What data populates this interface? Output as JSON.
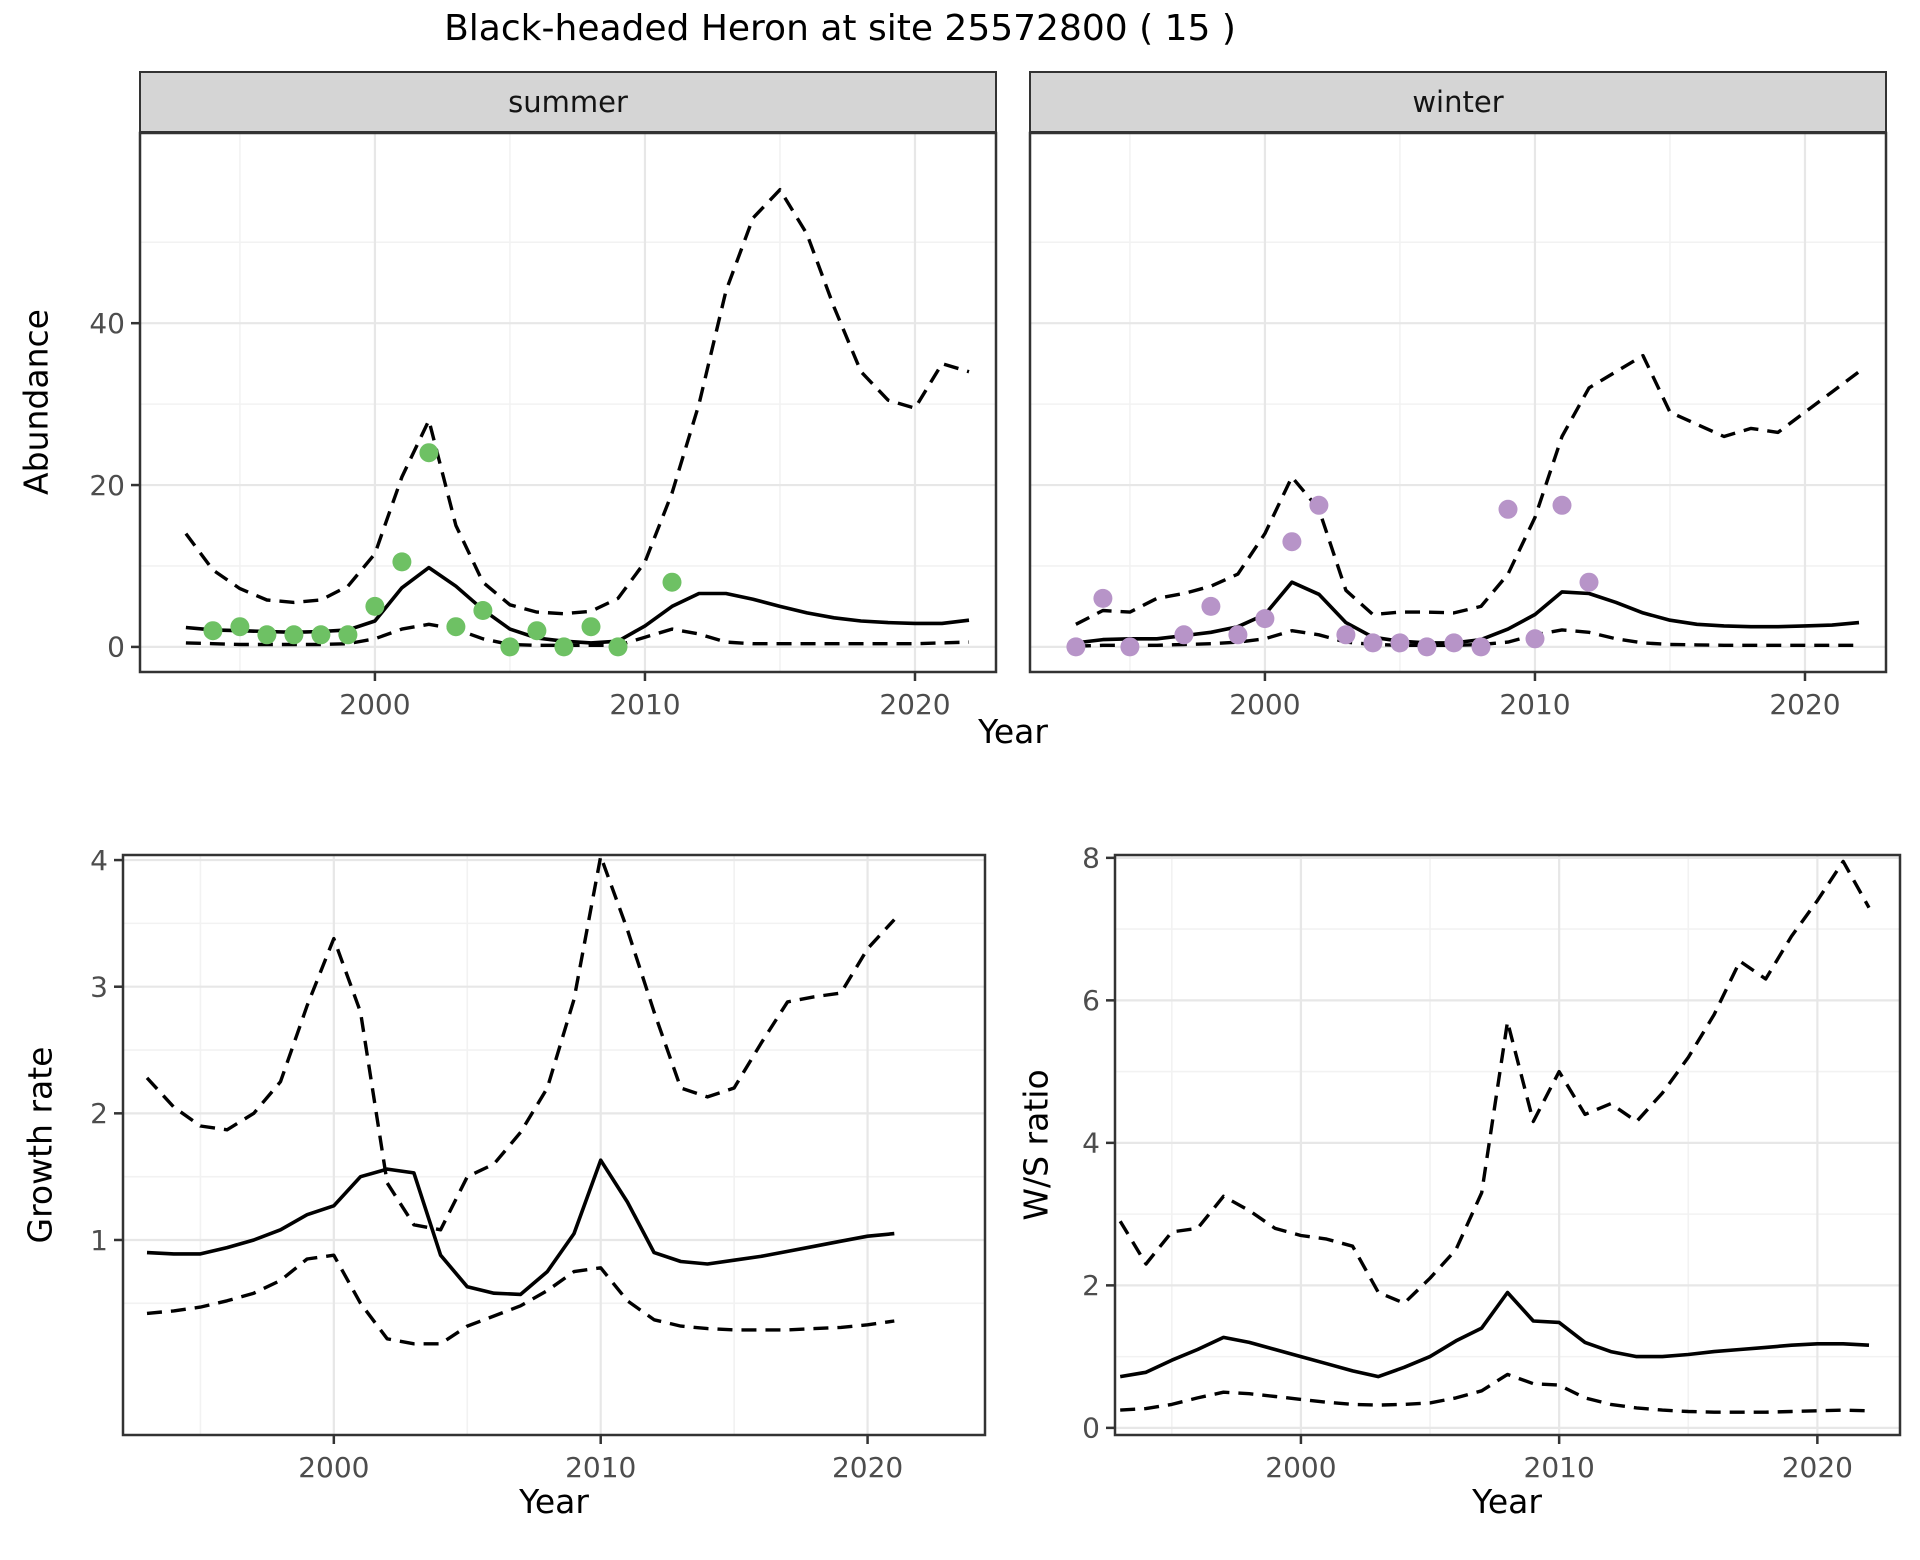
{
  "title": "Black-headed Heron at site 25572800 ( 15 )",
  "shared_x_label": "Year",
  "colors": {
    "line": "#000000",
    "summer_point": "#6ec164",
    "winter_point": "#b794c8",
    "strip_bg": "#d5d5d5",
    "strip_border": "#333333",
    "panel_border": "#333333",
    "grid_major": "#e7e7e7",
    "grid_minor": "#f2f2f2",
    "tick_label": "#4d4d4d",
    "text": "#000000"
  },
  "chart_data": [
    {
      "id": "summer",
      "type": "line",
      "facet_label": "summer",
      "xlabel": "Year",
      "ylabel": "Abundance",
      "xlim": [
        1991.3,
        2023.0
      ],
      "ylim": [
        -3.1,
        63.5
      ],
      "xticks": [
        2000,
        2010,
        2020
      ],
      "xticks_minor": [
        1995,
        2005,
        2015
      ],
      "yticks": [
        0,
        20,
        40
      ],
      "yticks_minor": [
        10,
        30,
        50
      ],
      "legend": "none",
      "series": [
        {
          "name": "median",
          "kind": "line",
          "dash": false,
          "x": [
            1993,
            1994,
            1995,
            1996,
            1997,
            1998,
            1999,
            2000,
            2001,
            2002,
            2003,
            2004,
            2005,
            2006,
            2007,
            2008,
            2009,
            2010,
            2011,
            2012,
            2013,
            2014,
            2015,
            2016,
            2017,
            2018,
            2019,
            2020,
            2021,
            2022
          ],
          "y": [
            2.4,
            2.1,
            2.0,
            1.9,
            1.8,
            1.9,
            2.1,
            3.2,
            7.3,
            9.8,
            7.5,
            4.6,
            2.2,
            1.1,
            0.7,
            0.5,
            0.7,
            2.6,
            5.0,
            6.6,
            6.6,
            5.9,
            5.0,
            4.2,
            3.6,
            3.2,
            3.0,
            2.9,
            2.9,
            3.3
          ]
        },
        {
          "name": "upper-ci",
          "kind": "line",
          "dash": true,
          "x": [
            1993,
            1994,
            1995,
            1996,
            1997,
            1998,
            1999,
            2000,
            2001,
            2002,
            2003,
            2004,
            2005,
            2006,
            2007,
            2008,
            2009,
            2010,
            2011,
            2012,
            2013,
            2014,
            2015,
            2016,
            2017,
            2018,
            2019,
            2020,
            2021,
            2022
          ],
          "y": [
            14,
            9.5,
            7.2,
            5.8,
            5.5,
            5.8,
            7.5,
            11.5,
            21,
            28,
            15,
            8,
            5.2,
            4.3,
            4.1,
            4.4,
            6,
            10.5,
            19,
            30,
            44,
            53,
            56.5,
            51,
            42,
            34,
            30.5,
            29.5,
            35,
            34
          ]
        },
        {
          "name": "lower-ci",
          "kind": "line",
          "dash": true,
          "x": [
            1993,
            1994,
            1995,
            1996,
            1997,
            1998,
            1999,
            2000,
            2001,
            2002,
            2003,
            2004,
            2005,
            2006,
            2007,
            2008,
            2009,
            2010,
            2011,
            2012,
            2013,
            2014,
            2015,
            2016,
            2017,
            2018,
            2019,
            2020,
            2021,
            2022
          ],
          "y": [
            0.5,
            0.4,
            0.3,
            0.3,
            0.3,
            0.3,
            0.4,
            1.0,
            2.2,
            2.8,
            2.2,
            1.0,
            0.3,
            0.2,
            0.2,
            0.2,
            0.2,
            1.2,
            2.2,
            1.6,
            0.6,
            0.4,
            0.4,
            0.4,
            0.4,
            0.4,
            0.4,
            0.4,
            0.5,
            0.6
          ]
        },
        {
          "name": "observations",
          "kind": "points",
          "color": "#6ec164",
          "x": [
            1994,
            1995,
            1996,
            1997,
            1998,
            1999,
            2000,
            2001,
            2002,
            2003,
            2004,
            2005,
            2006,
            2007,
            2008,
            2009,
            2011
          ],
          "y": [
            2,
            2.5,
            1.5,
            1.5,
            1.5,
            1.5,
            5,
            10.5,
            24,
            2.5,
            4.5,
            0,
            2,
            0,
            2.5,
            0,
            8
          ]
        }
      ]
    },
    {
      "id": "winter",
      "type": "line",
      "facet_label": "winter",
      "xlabel": "Year",
      "ylabel": "Abundance",
      "xlim": [
        1991.3,
        2023.0
      ],
      "ylim": [
        -3.1,
        63.5
      ],
      "xticks": [
        2000,
        2010,
        2020
      ],
      "xticks_minor": [
        1995,
        2005,
        2015
      ],
      "yticks": [
        0,
        20,
        40
      ],
      "yticks_minor": [
        10,
        30,
        50
      ],
      "legend": "none",
      "series": [
        {
          "name": "median",
          "kind": "line",
          "dash": false,
          "x": [
            1993,
            1994,
            1995,
            1996,
            1997,
            1998,
            1999,
            2000,
            2001,
            2002,
            2003,
            2004,
            2005,
            2006,
            2007,
            2008,
            2009,
            2010,
            2011,
            2012,
            2013,
            2014,
            2015,
            2016,
            2017,
            2018,
            2019,
            2020,
            2021,
            2022
          ],
          "y": [
            0.5,
            0.9,
            1.0,
            1.0,
            1.4,
            1.8,
            2.5,
            4.0,
            8.0,
            6.5,
            3.0,
            1.2,
            0.7,
            0.5,
            0.5,
            0.9,
            2.2,
            4.0,
            6.8,
            6.6,
            5.5,
            4.2,
            3.3,
            2.8,
            2.6,
            2.5,
            2.5,
            2.6,
            2.7,
            3.0
          ]
        },
        {
          "name": "upper-ci",
          "kind": "line",
          "dash": true,
          "x": [
            1993,
            1994,
            1995,
            1996,
            1997,
            1998,
            1999,
            2000,
            2001,
            2002,
            2003,
            2004,
            2005,
            2006,
            2007,
            2008,
            2009,
            2010,
            2011,
            2012,
            2013,
            2014,
            2015,
            2016,
            2017,
            2018,
            2019,
            2020,
            2021,
            2022
          ],
          "y": [
            2.8,
            4.5,
            4.3,
            6.0,
            6.6,
            7.5,
            9.0,
            14,
            21,
            17,
            7.0,
            4.0,
            4.3,
            4.3,
            4.2,
            5.0,
            9.0,
            16,
            26,
            32,
            34,
            36,
            29,
            27.5,
            26,
            27,
            26.5,
            29,
            31.5,
            34
          ]
        },
        {
          "name": "lower-ci",
          "kind": "line",
          "dash": true,
          "x": [
            1993,
            1994,
            1995,
            1996,
            1997,
            1998,
            1999,
            2000,
            2001,
            2002,
            2003,
            2004,
            2005,
            2006,
            2007,
            2008,
            2009,
            2010,
            2011,
            2012,
            2013,
            2014,
            2015,
            2016,
            2017,
            2018,
            2019,
            2020,
            2021,
            2022
          ],
          "y": [
            0.1,
            0.2,
            0.2,
            0.2,
            0.3,
            0.4,
            0.6,
            1.0,
            2.0,
            1.5,
            0.6,
            0.3,
            0.2,
            0.2,
            0.2,
            0.3,
            0.6,
            1.5,
            2.1,
            1.8,
            1.0,
            0.5,
            0.3,
            0.25,
            0.2,
            0.2,
            0.2,
            0.2,
            0.2,
            0.2
          ]
        },
        {
          "name": "observations",
          "kind": "points",
          "color": "#b794c8",
          "x": [
            1993,
            1994,
            1995,
            1997,
            1998,
            1999,
            2000,
            2001,
            2002,
            2003,
            2004,
            2005,
            2006,
            2007,
            2008,
            2009,
            2010,
            2011,
            2012
          ],
          "y": [
            0,
            6,
            0,
            1.5,
            5,
            1.5,
            3.5,
            13,
            17.5,
            1.5,
            0.5,
            0.5,
            0,
            0.5,
            0,
            17,
            1,
            17.5,
            8
          ]
        }
      ]
    },
    {
      "id": "growth_rate",
      "type": "line",
      "facet_label": "",
      "xlabel": "Year",
      "ylabel": "Growth rate",
      "xlim": [
        1992.1,
        2024.4
      ],
      "ylim": [
        -0.54,
        4.04
      ],
      "xticks": [
        2000,
        2010,
        2020
      ],
      "xticks_minor": [
        1995,
        2005,
        2015
      ],
      "yticks": [
        1,
        2,
        3,
        4
      ],
      "yticks_minor": [
        0.5,
        1.5,
        2.5,
        3.5
      ],
      "legend": "none",
      "series": [
        {
          "name": "median",
          "kind": "line",
          "dash": false,
          "x": [
            1993,
            1994,
            1995,
            1996,
            1997,
            1998,
            1999,
            2000,
            2001,
            2002,
            2003,
            2004,
            2005,
            2006,
            2007,
            2008,
            2009,
            2010,
            2011,
            2012,
            2013,
            2014,
            2015,
            2016,
            2017,
            2018,
            2019,
            2020,
            2021
          ],
          "y": [
            0.9,
            0.89,
            0.89,
            0.94,
            1.0,
            1.08,
            1.2,
            1.27,
            1.5,
            1.56,
            1.53,
            0.88,
            0.63,
            0.58,
            0.57,
            0.75,
            1.05,
            1.63,
            1.3,
            0.9,
            0.83,
            0.81,
            0.84,
            0.87,
            0.91,
            0.95,
            0.99,
            1.03,
            1.05
          ]
        },
        {
          "name": "upper-ci",
          "kind": "line",
          "dash": true,
          "x": [
            1993,
            1994,
            1995,
            1996,
            1997,
            1998,
            1999,
            2000,
            2001,
            2002,
            2003,
            2004,
            2005,
            2006,
            2007,
            2008,
            2009,
            2010,
            2011,
            2012,
            2013,
            2014,
            2015,
            2016,
            2017,
            2018,
            2019,
            2020,
            2021
          ],
          "y": [
            2.28,
            2.05,
            1.9,
            1.87,
            2.0,
            2.25,
            2.85,
            3.38,
            2.8,
            1.45,
            1.12,
            1.08,
            1.5,
            1.6,
            1.85,
            2.2,
            2.9,
            4.03,
            3.45,
            2.8,
            2.2,
            2.13,
            2.2,
            2.55,
            2.88,
            2.92,
            2.95,
            3.3,
            3.53
          ]
        },
        {
          "name": "lower-ci",
          "kind": "line",
          "dash": true,
          "x": [
            1993,
            1994,
            1995,
            1996,
            1997,
            1998,
            1999,
            2000,
            2001,
            2002,
            2003,
            2004,
            2005,
            2006,
            2007,
            2008,
            2009,
            2010,
            2011,
            2012,
            2013,
            2014,
            2015,
            2016,
            2017,
            2018,
            2019,
            2020,
            2021
          ],
          "y": [
            0.42,
            0.44,
            0.47,
            0.52,
            0.58,
            0.68,
            0.85,
            0.88,
            0.5,
            0.22,
            0.18,
            0.18,
            0.32,
            0.4,
            0.48,
            0.6,
            0.75,
            0.78,
            0.52,
            0.37,
            0.32,
            0.3,
            0.29,
            0.29,
            0.29,
            0.3,
            0.31,
            0.33,
            0.36
          ]
        }
      ]
    },
    {
      "id": "ws_ratio",
      "type": "line",
      "facet_label": "",
      "xlabel": "Year",
      "ylabel": "W/S ratio",
      "xlim": [
        1992.8,
        2023.2
      ],
      "ylim": [
        -0.1,
        8.04
      ],
      "xticks": [
        2000,
        2010,
        2020
      ],
      "xticks_minor": [
        1995,
        2005,
        2015
      ],
      "yticks": [
        0,
        2,
        4,
        6,
        8
      ],
      "yticks_minor": [
        1,
        3,
        5,
        7
      ],
      "legend": "none",
      "series": [
        {
          "name": "median",
          "kind": "line",
          "dash": false,
          "x": [
            1993,
            1994,
            1995,
            1996,
            1997,
            1998,
            1999,
            2000,
            2001,
            2002,
            2003,
            2004,
            2005,
            2006,
            2007,
            2008,
            2009,
            2010,
            2011,
            2012,
            2013,
            2014,
            2015,
            2016,
            2017,
            2018,
            2019,
            2020,
            2021,
            2022
          ],
          "y": [
            0.72,
            0.78,
            0.95,
            1.1,
            1.27,
            1.2,
            1.1,
            1.0,
            0.9,
            0.8,
            0.72,
            0.85,
            1.0,
            1.22,
            1.4,
            1.9,
            1.5,
            1.48,
            1.2,
            1.07,
            1.0,
            1.0,
            1.03,
            1.07,
            1.1,
            1.13,
            1.16,
            1.18,
            1.18,
            1.16
          ]
        },
        {
          "name": "upper-ci",
          "kind": "line",
          "dash": true,
          "x": [
            1993,
            1994,
            1995,
            1996,
            1997,
            1998,
            1999,
            2000,
            2001,
            2002,
            2003,
            2004,
            2005,
            2006,
            2007,
            2008,
            2009,
            2010,
            2011,
            2012,
            2013,
            2014,
            2015,
            2016,
            2017,
            2018,
            2019,
            2020,
            2021,
            2022
          ],
          "y": [
            2.9,
            2.3,
            2.75,
            2.8,
            3.25,
            3.05,
            2.8,
            2.7,
            2.65,
            2.55,
            1.9,
            1.75,
            2.1,
            2.5,
            3.3,
            5.7,
            4.3,
            5.0,
            4.4,
            4.55,
            4.3,
            4.7,
            5.2,
            5.8,
            6.55,
            6.3,
            6.9,
            7.4,
            7.95,
            7.3
          ]
        },
        {
          "name": "lower-ci",
          "kind": "line",
          "dash": true,
          "x": [
            1993,
            1994,
            1995,
            1996,
            1997,
            1998,
            1999,
            2000,
            2001,
            2002,
            2003,
            2004,
            2005,
            2006,
            2007,
            2008,
            2009,
            2010,
            2011,
            2012,
            2013,
            2014,
            2015,
            2016,
            2017,
            2018,
            2019,
            2020,
            2021,
            2022
          ],
          "y": [
            0.25,
            0.27,
            0.33,
            0.42,
            0.5,
            0.48,
            0.44,
            0.4,
            0.36,
            0.33,
            0.32,
            0.33,
            0.35,
            0.42,
            0.52,
            0.75,
            0.62,
            0.6,
            0.42,
            0.33,
            0.28,
            0.25,
            0.23,
            0.22,
            0.22,
            0.22,
            0.23,
            0.24,
            0.25,
            0.24
          ]
        }
      ]
    }
  ]
}
